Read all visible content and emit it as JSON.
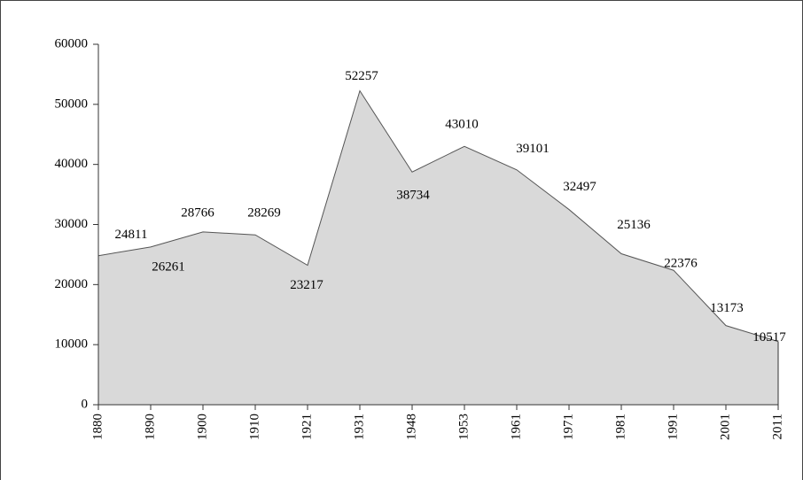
{
  "chart_data": {
    "type": "area",
    "categories": [
      "1880",
      "1890",
      "1900",
      "1910",
      "1921",
      "1931",
      "1948",
      "1953",
      "1961",
      "1971",
      "1981",
      "1991",
      "2001",
      "2011"
    ],
    "values": [
      24811,
      26261,
      28766,
      28269,
      23217,
      52257,
      38734,
      43010,
      39101,
      32497,
      25136,
      22376,
      13173,
      10517
    ],
    "color": "#d9d9d9",
    "ylim": [
      0,
      60000
    ],
    "yticks": [
      0,
      10000,
      20000,
      30000,
      40000,
      50000,
      60000
    ]
  }
}
